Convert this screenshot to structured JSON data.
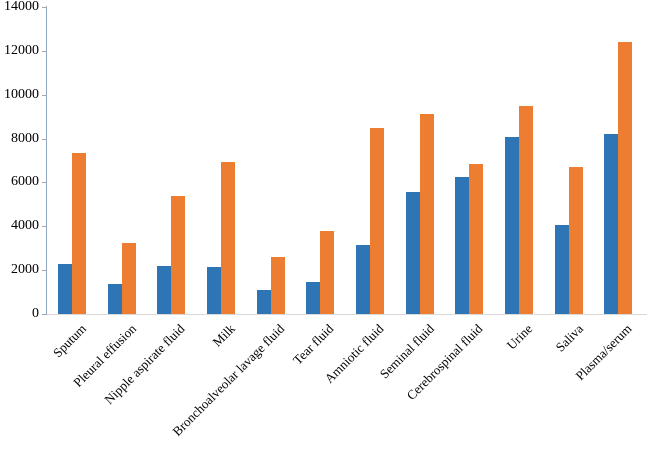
{
  "chart_data": {
    "type": "bar",
    "title": "",
    "xlabel": "",
    "ylabel": "",
    "categories": [
      "Sputum",
      "Pleural effusion",
      "Nipple aspirate fluid",
      "Milk",
      "Bronchoalveolar lavage fluid",
      "Tear fluid",
      "Amniotic fluid",
      "Seminal fluid",
      "Cerebrospinal fluid",
      "Urine",
      "Saliva",
      "Plasma/serum"
    ],
    "series": [
      {
        "name": "blue-series",
        "color": "#2E75B6",
        "values": [
          2300,
          1350,
          2200,
          2150,
          1100,
          1450,
          3150,
          5550,
          6250,
          8050,
          4050,
          8200
        ]
      },
      {
        "name": "orange-series",
        "color": "#ED7D31",
        "values": [
          7350,
          3250,
          5400,
          6950,
          2600,
          3800,
          8500,
          9100,
          6850,
          9500,
          6700,
          12400
        ]
      }
    ],
    "ylim": [
      0,
      14000
    ],
    "ytick_step": 2000,
    "y_tick_labels": [
      "0",
      "2000",
      "4000",
      "6000",
      "8000",
      "10000",
      "12000",
      "14000"
    ],
    "grid": false,
    "legend_position": "none",
    "x_labels_rotation_deg": 45
  }
}
